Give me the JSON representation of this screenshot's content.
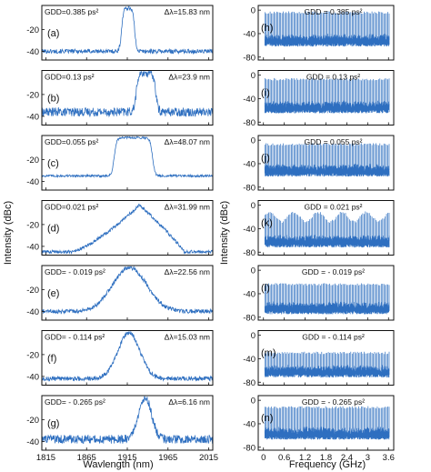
{
  "left": {
    "ylabel": "Intensity (dBc)",
    "xlabel": "Wavlength (nm)",
    "yticks": [
      -20,
      -40
    ],
    "xticks": [
      1815,
      1865,
      1915,
      1965,
      2015
    ],
    "xlim": [
      1810,
      2020
    ],
    "ylim": [
      -48,
      2
    ]
  },
  "right": {
    "ylabel": "Intensity (dBc)",
    "xlabel": "Frequency (GHz)",
    "yticks": [
      0,
      -40,
      -80
    ],
    "xticks": [
      "0",
      "0.6",
      "1.2",
      "1.8",
      "2.4",
      "3",
      "3.6"
    ],
    "xlim": [
      -0.15,
      3.75
    ],
    "ylim": [
      -85,
      8
    ]
  },
  "colors": {
    "trace": "#2e6fc0",
    "frame": "#111111"
  },
  "chart_data": [
    {
      "type": "line",
      "title": "",
      "xlabel": "Wavlength (nm)",
      "ylabel": "Intensity (dBc)",
      "panels": [
        {
          "label": "(a)",
          "gdd": "GDD=0.385 ps²",
          "bw": "Δλ=15.83 nm",
          "shape": "flat",
          "lo": 1908,
          "hi": 1924,
          "floor": -40,
          "edge": 1.2,
          "noise": 2
        },
        {
          "label": "(b)",
          "gdd": "GDD=0.13 ps²",
          "bw": "Δλ=23.9 nm",
          "shape": "flat",
          "lo": 1926,
          "hi": 1950,
          "floor": -36,
          "edge": 1.5,
          "noise": 4
        },
        {
          "label": "(c)",
          "gdd": "GDD=0.055 ps²",
          "bw": "Δλ=48.07 nm",
          "shape": "flat",
          "lo": 1899,
          "hi": 1946,
          "floor": -35,
          "edge": 1.5,
          "noise": 1
        },
        {
          "label": "(d)",
          "gdd": "GDD=0.021 ps²",
          "bw": "Δλ=31.99 nm",
          "shape": "tri",
          "lo": 1845,
          "hi": 1985,
          "pk": 1930,
          "floor": -45,
          "noise": 1.5
        },
        {
          "label": "(e)",
          "gdd": "GDD= - 0.019 ps²",
          "bw": "Δλ=22.56 nm",
          "shape": "bell",
          "center": 1918,
          "width": 30,
          "floor": -40,
          "noise": 2
        },
        {
          "label": "(f)",
          "gdd": "GDD= - 0.114 ps²",
          "bw": "Δλ=15.03 nm",
          "shape": "bell",
          "center": 1917,
          "width": 19,
          "floor": -42,
          "noise": 2
        },
        {
          "label": "(g)",
          "gdd": "GDD= - 0.265 ps²",
          "bw": "Δλ=6.16 nm",
          "shape": "bell",
          "center": 1937,
          "width": 11,
          "floor": -38,
          "noise": 4
        }
      ]
    },
    {
      "type": "line",
      "title": "",
      "xlabel": "Frequency (GHz)",
      "ylabel": "Intensity (dBc)",
      "panels": [
        {
          "label": "(h)",
          "gdd": "GDD = 0.385 ps²",
          "n": 95,
          "top": -2,
          "floor": -45
        },
        {
          "label": "(i)",
          "gdd": "GDD = 0.13 ps²",
          "n": 95,
          "top": -5,
          "floor": -48
        },
        {
          "label": "(j)",
          "gdd": "GDD = 0.055 ps²",
          "n": 95,
          "top": -5,
          "floor": -45
        },
        {
          "label": "(k)",
          "gdd": "GDD = 0.021 ps²",
          "n": 95,
          "top": -18,
          "floor": -55
        },
        {
          "label": "(l)",
          "gdd": "GDD = - 0.019 ps²",
          "n": 95,
          "top": -22,
          "floor": -58
        },
        {
          "label": "(m)",
          "gdd": "GDD = - 0.114 ps²",
          "n": 95,
          "top": -28,
          "floor": -55
        },
        {
          "label": "(n)",
          "gdd": "GDD = - 0.265 ps²",
          "n": 95,
          "top": -10,
          "floor": -50
        }
      ]
    }
  ]
}
